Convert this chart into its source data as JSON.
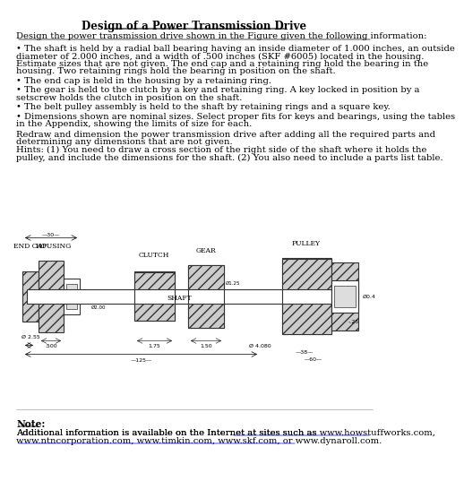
{
  "title": "Design of a Power Transmission Drive",
  "subtitle_underline": true,
  "intro_line": "Design the power transmission drive shown in the Figure given the following information:",
  "bullets": [
    "• The shaft is held by a radial ball bearing having an inside diameter of 1.000 inches, an outside\ndiameter of 2.000 inches, and a width of .500 inches (SKF #6005) located in the housing.\nEstimate sizes that are not given. The end cap and a retaining ring hold the bearing in the\nhousing. Two retaining rings hold the bearing in position on the shaft.",
    "• The end cap is held in the housing by a retaining ring.",
    "• The gear is held to the clutch by a key and retaining ring. A key locked in position by a\nsetscrew holds the clutch in position on the shaft.",
    "• The belt pulley assembly is held to the shaft by retaining rings and a square key.",
    "• Dimensions shown are nominal sizes. Select proper fits for keys and bearings, using the tables\nin the Appendix, showing the limits of size for each."
  ],
  "redraw_text": "Redraw and dimension the power transmission drive after adding all the required parts and\ndetermining any dimensions that are not given.\nHints: (1) You need to draw a cross section of the right side of the shaft where it holds the\npulley, and include the dimensions for the shaft. (2) You also need to include a parts list table.",
  "note_label": "Note:",
  "note_text": "Additional information is available on the Internet at sites such as www.howstuffworks.com,\nwww.ntncorporation.com, www.timkin.com, www.skf.com, or www.dynaroll.com.",
  "note_urls": [
    "www.howstuffworks.com",
    "www.ntncorporation.com",
    "www.timkin.com",
    "www.skf.com",
    "www.dynaroll.com"
  ],
  "bg_color": "#ffffff",
  "text_color": "#000000",
  "font_size": 7.2,
  "title_font_size": 8.5
}
